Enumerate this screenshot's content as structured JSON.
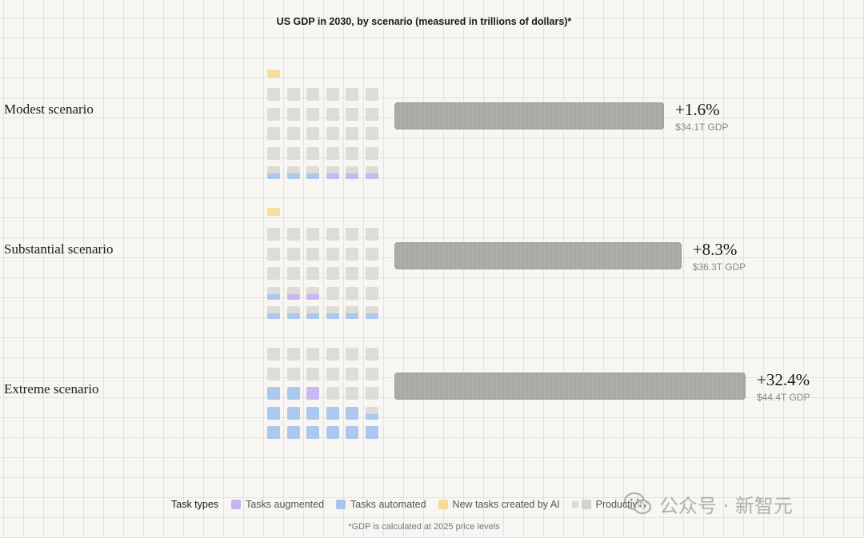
{
  "chart_data": {
    "type": "bar",
    "title": "US GDP in 2030, by scenario (measured in trillions of dollars)*",
    "scenarios": [
      {
        "label": "Modest scenario",
        "change": "+1.6%",
        "gdp_label": "$34.1T GDP",
        "gdp_trillions": 34.1,
        "grid": {
          "new_tasks": 1,
          "productivity": 30,
          "automated": 3,
          "augmented": 3
        }
      },
      {
        "label": "Substantial scenario",
        "change": "+8.3%",
        "gdp_label": "$36.3T GDP",
        "gdp_trillions": 36.3,
        "grid": {
          "new_tasks": 1,
          "productivity": 18,
          "automated": 9,
          "augmented": 3
        }
      },
      {
        "label": "Extreme scenario",
        "change": "+32.4%",
        "gdp_label": "$44.4T GDP",
        "gdp_trillions": 44.4,
        "grid": {
          "new_tasks": 0,
          "productivity": 15,
          "automated": 14,
          "augmented": 1
        }
      }
    ],
    "legend": {
      "title": "Task types",
      "items": [
        {
          "label": "Tasks augmented",
          "color": "#c4b5f2"
        },
        {
          "label": "Tasks automated",
          "color": "#a9c5ee"
        },
        {
          "label": "New tasks created by AI",
          "color": "#f6dc95"
        },
        {
          "label": "Productivity",
          "color": "#dcdad5"
        }
      ]
    },
    "footnote": "*GDP is calculated at 2025 price levels"
  },
  "watermark": {
    "text": "公众号 · 新智元"
  },
  "colors": {
    "bar": "#acaaa4",
    "productivity": "#dcdad5",
    "automated": "#a9c5ee",
    "augmented": "#c4b5f2",
    "new_tasks": "#f6dc95"
  }
}
